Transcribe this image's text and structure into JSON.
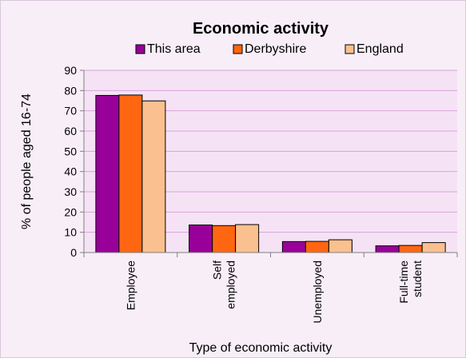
{
  "chart_data": {
    "type": "bar",
    "title": "Economic activity",
    "xlabel": "Type of economic activity",
    "ylabel": "% of people aged 16-74",
    "ylim": [
      0,
      90
    ],
    "yticks": [
      0,
      10,
      20,
      30,
      40,
      50,
      60,
      70,
      80,
      90
    ],
    "categories": [
      [
        "Employee"
      ],
      [
        "Self",
        "employed"
      ],
      [
        "Unemployed"
      ],
      [
        "Full-time",
        "student"
      ]
    ],
    "series": [
      {
        "name": "This area",
        "color": "#990099",
        "values": [
          77.6,
          13.6,
          5.4,
          3.3
        ]
      },
      {
        "name": "Derbyshire",
        "color": "#ff6611",
        "values": [
          77.8,
          13.3,
          5.5,
          3.5
        ]
      },
      {
        "name": "England",
        "color": "#fbc08f",
        "values": [
          74.9,
          13.8,
          6.3,
          4.9
        ]
      }
    ],
    "grid": true,
    "legend": "top"
  }
}
